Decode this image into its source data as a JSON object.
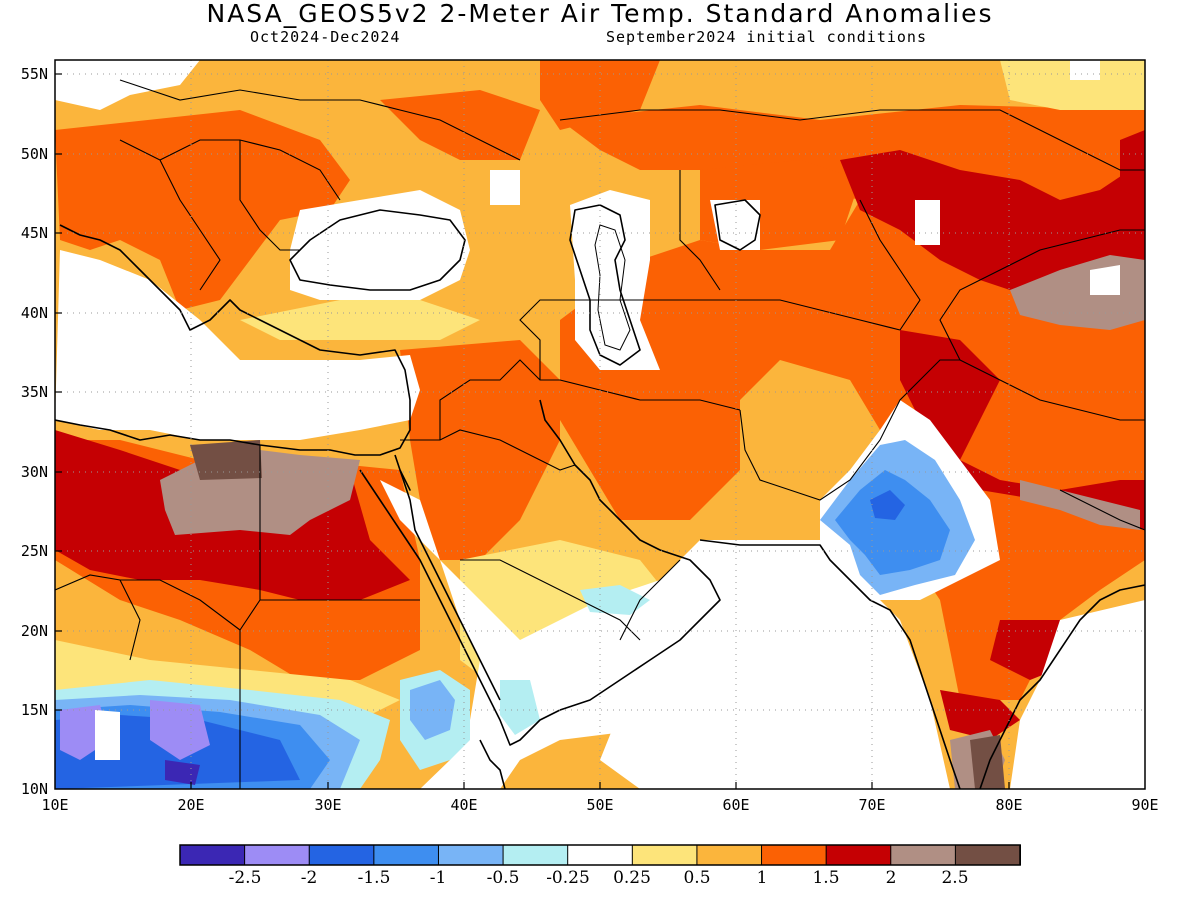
{
  "header": {
    "title": "NASA_GEOS5v2 2-Meter Air Temp. Standard Anomalies",
    "period": "Oct2024-Dec2024",
    "init": "September2024 initial conditions"
  },
  "map": {
    "lon_range": [
      10,
      90
    ],
    "lat_range": [
      10,
      56
    ],
    "lat_ticks": [
      "55N",
      "50N",
      "45N",
      "40N",
      "35N",
      "30N",
      "25N",
      "20N",
      "15N",
      "10N"
    ],
    "lon_ticks": [
      "10E",
      "20E",
      "30E",
      "40E",
      "50E",
      "60E",
      "70E",
      "80E",
      "90E"
    ],
    "grid": "dotted"
  },
  "colorbar": {
    "colors": [
      "#3b27b4",
      "#9d8cf5",
      "#2464e3",
      "#3e8ef0",
      "#78b4f6",
      "#b4eef2",
      "#ffffff",
      "#fde47a",
      "#fbb53c",
      "#fb6104",
      "#c50003",
      "#b08f84",
      "#734f44"
    ],
    "labels": [
      "-2.5",
      "-2",
      "-1.5",
      "-1",
      "-0.5",
      "-0.25",
      "0.25",
      "0.5",
      "1",
      "1.5",
      "2",
      "2.5"
    ]
  }
}
